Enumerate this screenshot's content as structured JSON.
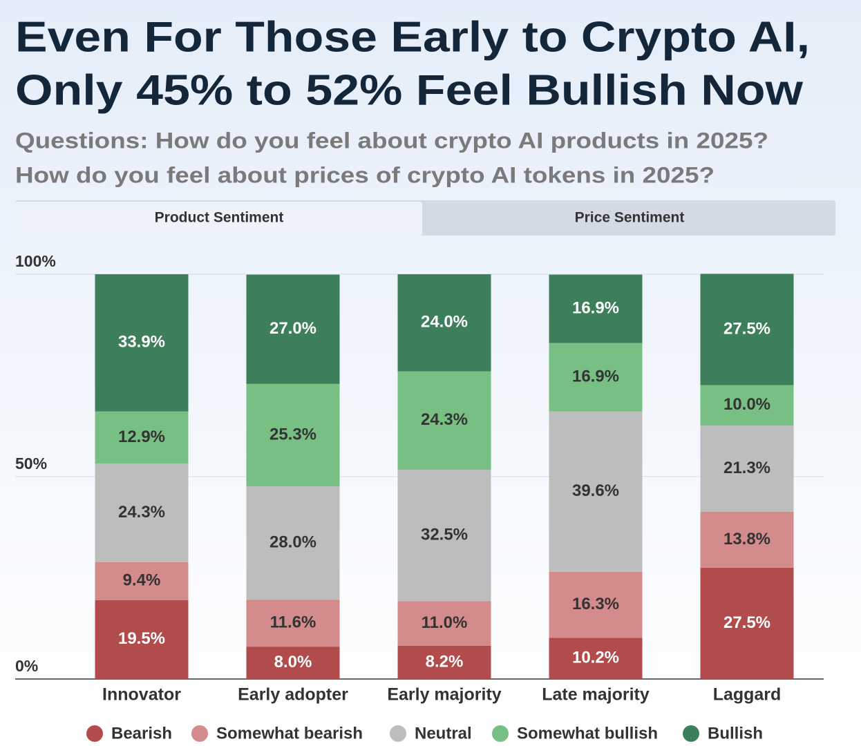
{
  "chart_data": {
    "type": "stacked_bar",
    "title": [
      "Even For Those Early to Crypto AI,",
      "Only 45% to 52% Feel Bullish Now"
    ],
    "subtitle": [
      "Questions: How do you feel about crypto AI products in 2025?",
      "How do you feel about prices of crypto AI tokens in 2025?"
    ],
    "tabs": [
      "Product Sentiment",
      "Price Sentiment"
    ],
    "categories": [
      "Innovator",
      "Early adopter",
      "Early majority",
      "Late majority",
      "Laggard"
    ],
    "series": [
      {
        "name": "Bearish",
        "color": "#b24c4c",
        "label_color": "#ffffff",
        "values": [
          19.5,
          8.0,
          8.2,
          10.2,
          27.5
        ],
        "value_labels": [
          "19.5%",
          "8.0%",
          "8.2%",
          "10.2%",
          "27.5%"
        ]
      },
      {
        "name": "Somewhat bearish",
        "color": "#d48b8b",
        "label_color": "#333333",
        "values": [
          9.4,
          11.6,
          11.0,
          16.3,
          13.8
        ],
        "value_labels": [
          "9.4%",
          "11.6%",
          "11.0%",
          "16.3%",
          "13.8%"
        ]
      },
      {
        "name": "Neutral",
        "color": "#bdbdbd",
        "label_color": "#333333",
        "values": [
          24.3,
          28.0,
          32.5,
          39.6,
          21.3
        ],
        "value_labels": [
          "24.3%",
          "28.0%",
          "32.5%",
          "39.6%",
          "21.3%"
        ]
      },
      {
        "name": "Somewhat bullish",
        "color": "#77bf83",
        "label_color": "#333333",
        "values": [
          12.9,
          25.3,
          24.3,
          16.9,
          10.0
        ],
        "value_labels": [
          "12.9%",
          "25.3%",
          "24.3%",
          "16.9%",
          "10.0%"
        ]
      },
      {
        "name": "Bullish",
        "color": "#3e7f5b",
        "label_color": "#ffffff",
        "values": [
          33.9,
          27.0,
          24.0,
          16.9,
          27.5
        ],
        "value_labels": [
          "33.9%",
          "27.0%",
          "24.0%",
          "16.9%",
          "27.5%"
        ]
      }
    ],
    "ylim": [
      0,
      100
    ],
    "yticks": [
      {
        "value": 0,
        "label": "0%"
      },
      {
        "value": 50,
        "label": "50%"
      },
      {
        "value": 100,
        "label": "100%"
      }
    ],
    "grid": true
  }
}
